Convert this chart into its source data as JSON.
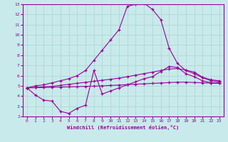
{
  "xlabel": "Windchill (Refroidissement éolien,°C)",
  "bg_color": "#c8eaea",
  "grid_color": "#b0d8d8",
  "line_color": "#990099",
  "x": [
    0,
    1,
    2,
    3,
    4,
    5,
    6,
    7,
    8,
    9,
    10,
    11,
    12,
    13,
    14,
    15,
    16,
    17,
    18,
    19,
    20,
    21,
    22,
    23
  ],
  "curve_main": [
    4.8,
    5.0,
    5.1,
    5.3,
    5.5,
    5.7,
    6.0,
    6.5,
    7.5,
    8.5,
    9.5,
    10.5,
    12.8,
    13.0,
    13.1,
    12.5,
    11.5,
    8.7,
    7.2,
    6.5,
    6.2,
    5.8,
    5.5,
    5.4
  ],
  "curve_low": [
    4.8,
    4.1,
    3.6,
    3.5,
    2.5,
    2.3,
    2.8,
    3.1,
    6.5,
    4.2,
    4.5,
    4.8,
    5.1,
    5.4,
    5.7,
    5.9,
    6.4,
    6.9,
    6.8,
    6.2,
    5.9,
    5.5,
    5.3,
    5.3
  ],
  "curve_upper": [
    4.8,
    4.85,
    4.9,
    4.95,
    5.05,
    5.15,
    5.25,
    5.35,
    5.45,
    5.55,
    5.65,
    5.75,
    5.9,
    6.05,
    6.2,
    6.35,
    6.5,
    6.65,
    6.7,
    6.55,
    6.35,
    5.85,
    5.6,
    5.5
  ],
  "curve_flat": [
    4.8,
    4.82,
    4.84,
    4.86,
    4.88,
    4.9,
    4.92,
    4.95,
    4.97,
    5.0,
    5.04,
    5.08,
    5.12,
    5.16,
    5.2,
    5.24,
    5.28,
    5.32,
    5.36,
    5.36,
    5.33,
    5.3,
    5.27,
    5.25
  ],
  "ylim": [
    2,
    13
  ],
  "xlim": [
    -0.5,
    23.5
  ]
}
